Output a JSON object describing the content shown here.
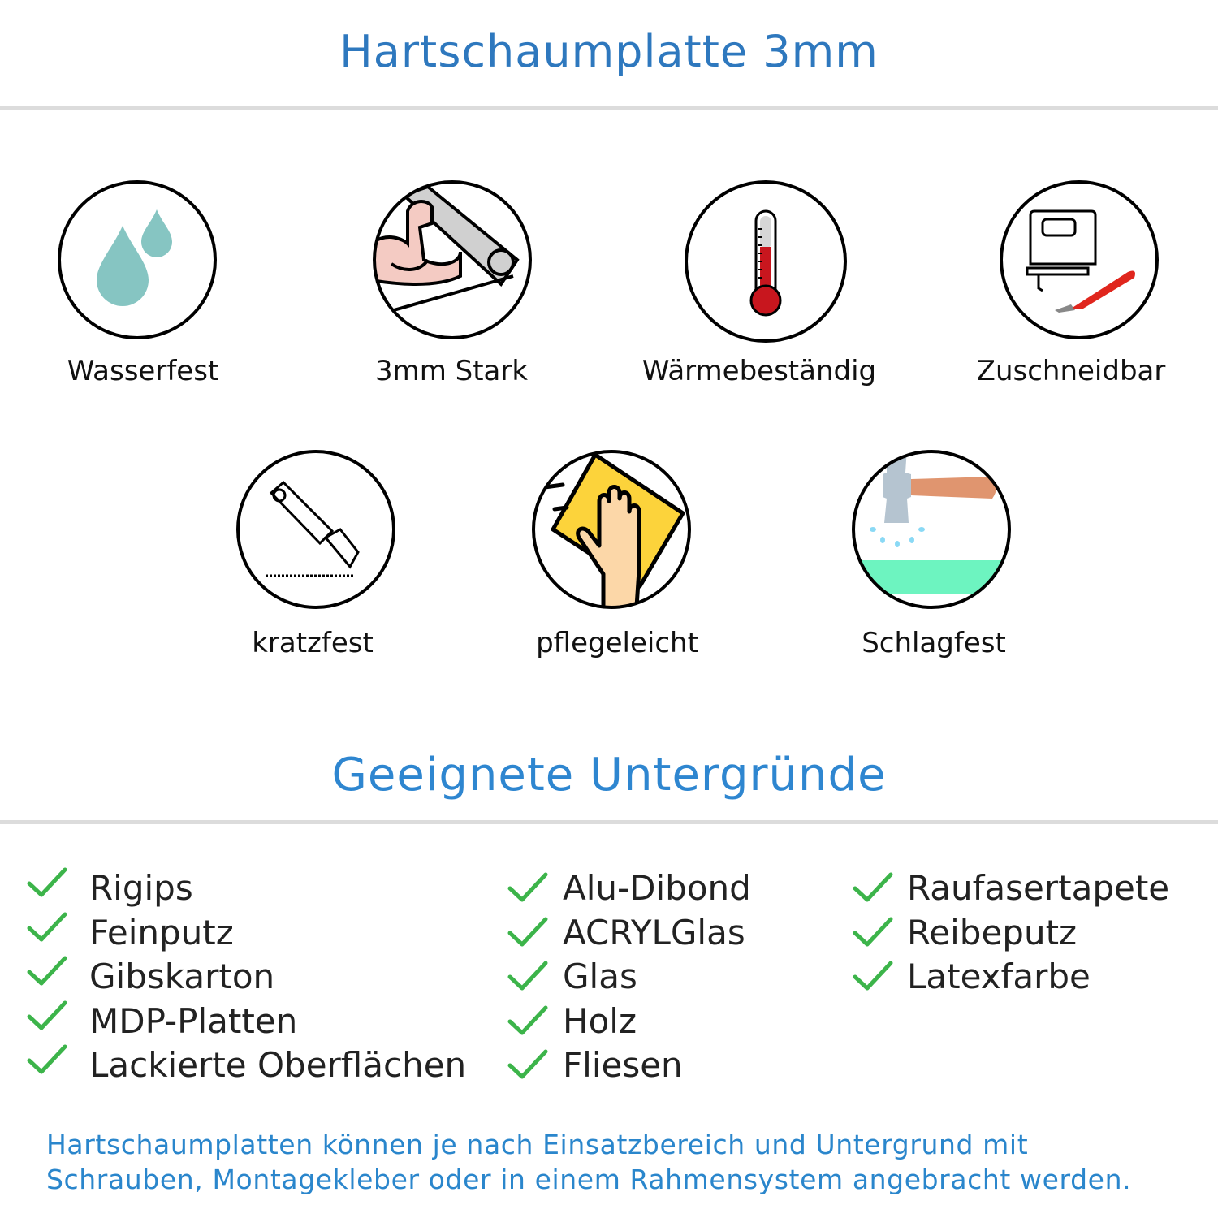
{
  "header": {
    "title": "Hartschaumplatte 3mm",
    "color": "#2e78be"
  },
  "features": [
    {
      "label": "Wasserfest",
      "icon": "water-drops-icon"
    },
    {
      "label": "3mm Stark",
      "icon": "strong-arm-icon"
    },
    {
      "label": "Wärmebeständig",
      "icon": "thermometer-icon"
    },
    {
      "label": "Zuschneidbar",
      "icon": "jigsaw-knife-icon"
    },
    {
      "label": "kratzfest",
      "icon": "cutter-icon"
    },
    {
      "label": "pflegeleicht",
      "icon": "cleaning-hand-icon"
    },
    {
      "label": "Schlagfest",
      "icon": "hammer-icon"
    }
  ],
  "surfaces": {
    "title": "Geeignete Untergründe",
    "title_color": "#2e86d0",
    "check_color": "#3cb44a",
    "columns": [
      [
        "Rigips",
        "Feinputz",
        "Gibskarton",
        "MDP-Platten",
        "Lackierte Oberflächen"
      ],
      [
        "Alu-Dibond",
        "ACRYLGlas",
        "Glas",
        "Holz",
        "Fliesen"
      ],
      [
        "Raufasertapete",
        "Reibeputz",
        "Latexfarbe"
      ]
    ]
  },
  "note": {
    "line1": "Hartschaumplatten können je nach Einsatzbereich und Untergrund mit",
    "line2": "Schrauben, Montagekleber oder in einem Rahmensystem angebracht werden.",
    "color": "#2a86cc"
  }
}
